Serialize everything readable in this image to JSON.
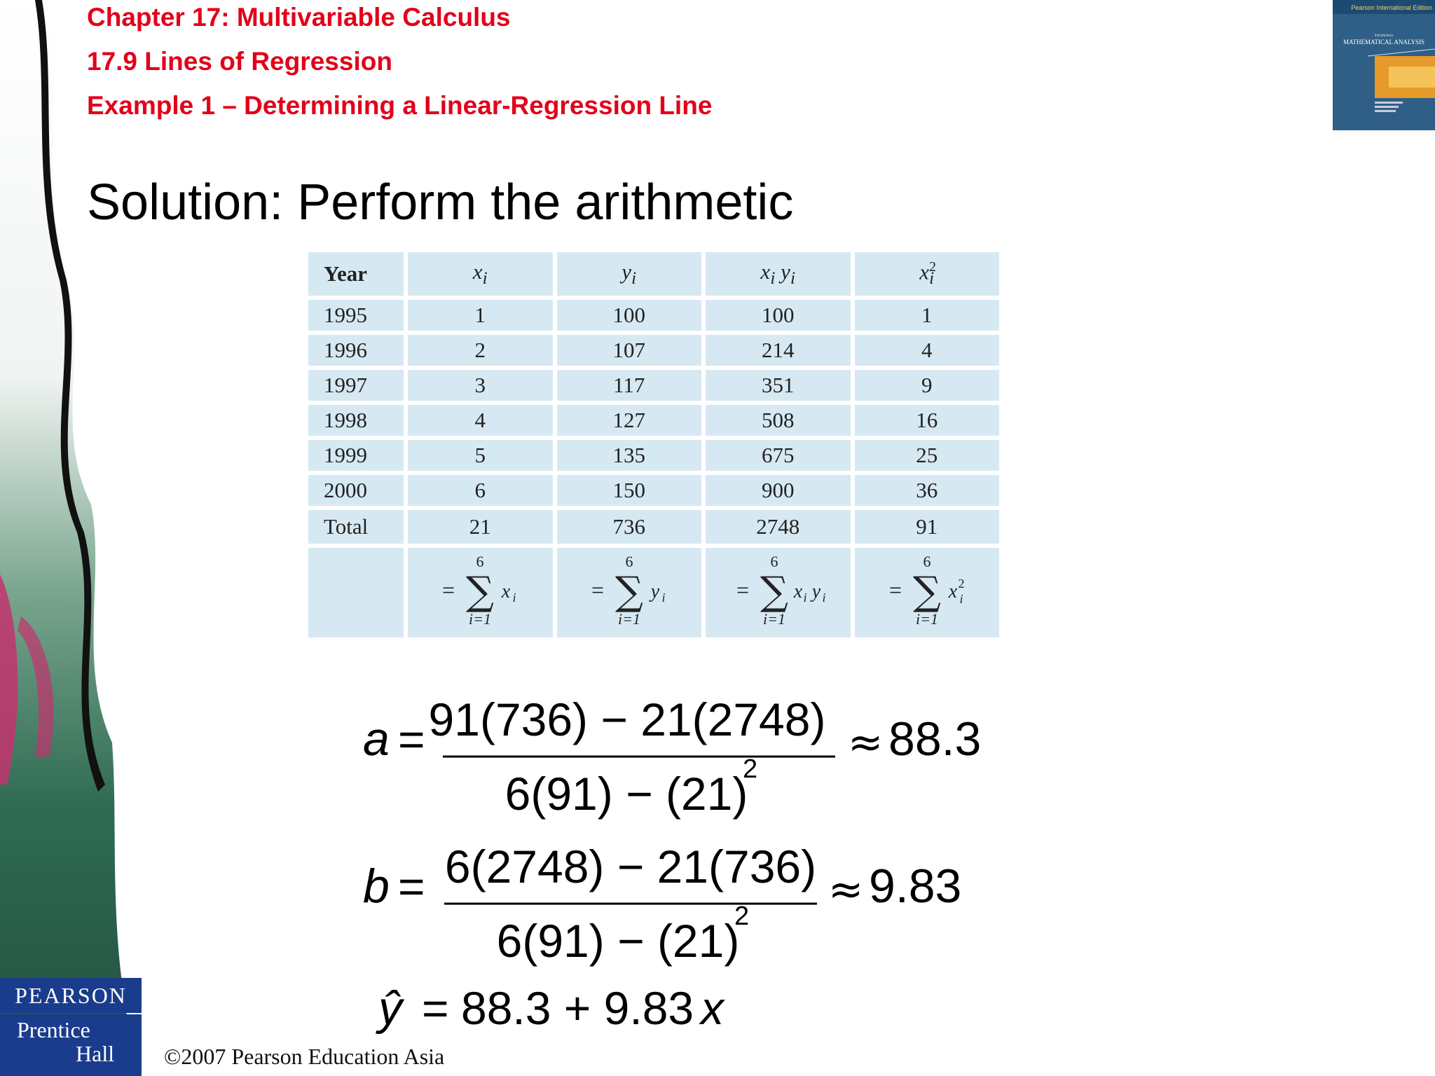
{
  "header": {
    "chapter": "Chapter 17: Multivariable Calculus",
    "section": "17.9 Lines of Regression",
    "example": "Example 1 – Determining a Linear-Regression Line"
  },
  "title": "Solution: Perform the arithmetic",
  "book_cover": {
    "badge": "Pearson International Edition",
    "intro": "Introductory",
    "title": "MATHEMATICAL ANALYSIS"
  },
  "table": {
    "headers": {
      "year": "Year",
      "x": "x",
      "y": "y",
      "xy": "x",
      "xy2": "y",
      "x2": "x",
      "sub": "i",
      "sup": "2"
    },
    "rows": [
      {
        "year": "1995",
        "x": "1",
        "y": "100",
        "xy": "100",
        "x2": "1"
      },
      {
        "year": "1996",
        "x": "2",
        "y": "107",
        "xy": "214",
        "x2": "4"
      },
      {
        "year": "1997",
        "x": "3",
        "y": "117",
        "xy": "351",
        "x2": "9"
      },
      {
        "year": "1998",
        "x": "4",
        "y": "127",
        "xy": "508",
        "x2": "16"
      },
      {
        "year": "1999",
        "x": "5",
        "y": "135",
        "xy": "675",
        "x2": "25"
      },
      {
        "year": "2000",
        "x": "6",
        "y": "150",
        "xy": "900",
        "x2": "36"
      }
    ],
    "total": {
      "label": "Total",
      "x": "21",
      "y": "736",
      "xy": "2748",
      "x2": "91"
    },
    "sigma": {
      "eq": "=",
      "upper": "6",
      "lower": "i=1",
      "symbol": "∑"
    }
  },
  "formulas": {
    "a": {
      "lhs": "a",
      "eq": "=",
      "numerator": "91(736) − 21(2748)",
      "denominator": "6(91) − (21)",
      "exp": "2",
      "approx": "≈",
      "result": "88.3"
    },
    "b": {
      "lhs": "b",
      "eq": "=",
      "numerator": "6(2748) − 21(736)",
      "denominator": "6(91) − (21)",
      "exp": "2",
      "approx": "≈",
      "result": "9.83"
    },
    "yhat": {
      "lhs": "ŷ",
      "eq": "=",
      "rhs": "88.3 + 9.83",
      "var": "x"
    }
  },
  "footer": {
    "copyright": "©2007 Pearson Education Asia",
    "logo_top": "PEARSON",
    "logo_line1": "Prentice",
    "logo_line2": "Hall"
  }
}
